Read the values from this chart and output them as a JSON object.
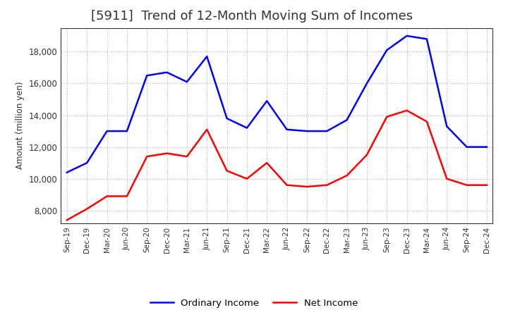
{
  "title": "[5911]  Trend of 12-Month Moving Sum of Incomes",
  "ylabel": "Amount (million yen)",
  "labels": [
    "Sep-19",
    "Dec-19",
    "Mar-20",
    "Jun-20",
    "Sep-20",
    "Dec-20",
    "Mar-21",
    "Jun-21",
    "Sep-21",
    "Dec-21",
    "Mar-22",
    "Jun-22",
    "Sep-22",
    "Dec-22",
    "Mar-23",
    "Jun-23",
    "Sep-23",
    "Dec-23",
    "Mar-24",
    "Jun-24",
    "Sep-24",
    "Dec-24"
  ],
  "ordinary_income": [
    10400,
    11000,
    13000,
    13000,
    16500,
    16700,
    16100,
    17700,
    13800,
    13200,
    14900,
    13100,
    13000,
    13000,
    13700,
    16000,
    18100,
    19000,
    18800,
    13300,
    12000,
    12000
  ],
  "net_income": [
    7400,
    8100,
    8900,
    8900,
    11400,
    11600,
    11400,
    13100,
    10500,
    10000,
    11000,
    9600,
    9500,
    9600,
    10200,
    11500,
    13900,
    14300,
    13600,
    10000,
    9600,
    9600
  ],
  "ordinary_color": "#0000ff",
  "net_color": "#ff0000",
  "background_color": "#ffffff",
  "grid_color": "#aaaaaa",
  "ylim": [
    7200,
    19500
  ],
  "yticks": [
    8000,
    10000,
    12000,
    14000,
    16000,
    18000
  ],
  "line_width": 1.8,
  "title_fontsize": 13,
  "title_color": "#333333",
  "legend_labels": [
    "Ordinary Income",
    "Net Income"
  ]
}
